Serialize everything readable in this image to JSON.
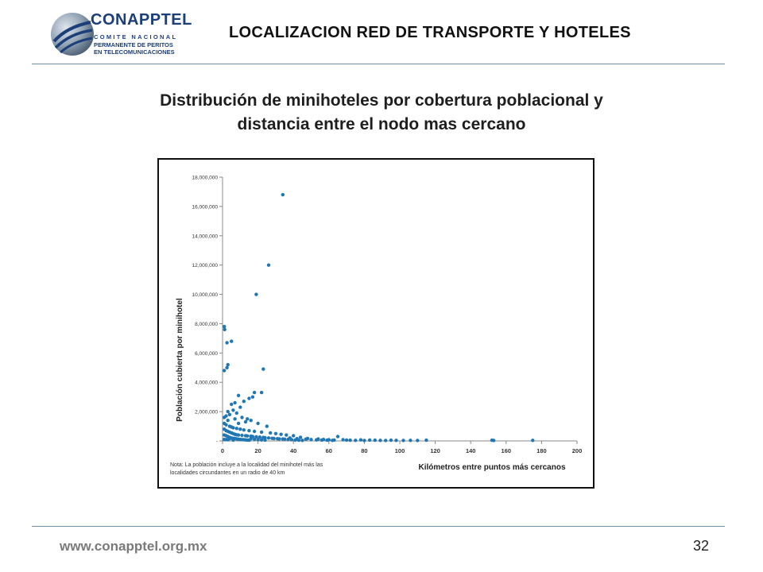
{
  "header": {
    "logo_brand": "CONAPPTEL",
    "logo_line1": "COMITE NACIONAL",
    "logo_line2": "PERMANENTE DE PERITOS",
    "logo_line3": "EN TELECOMUNICACIONES",
    "title": "LOCALIZACION RED DE TRANSPORTE Y HOTELES"
  },
  "slide": {
    "title_line1": "Distribución de minihoteles por cobertura poblacional y",
    "title_line2": "distancia entre el nodo mas cercano"
  },
  "footer": {
    "url": "www.conapptel.org.mx",
    "page_number": "32"
  },
  "colors": {
    "points": "#1f77b4",
    "rule": "#6f8fa6",
    "brand": "#1c3f7a"
  },
  "chart_data": {
    "type": "scatter",
    "xlabel": "Kilómetros entre puntos más cercanos",
    "ylabel": "Población cubierta por minihotel",
    "xlim": [
      0,
      200
    ],
    "ylim": [
      0,
      18000000
    ],
    "x_ticks": [
      0,
      20,
      40,
      60,
      80,
      100,
      120,
      140,
      160,
      180,
      200
    ],
    "y_ticks": [
      0,
      2000000,
      4000000,
      6000000,
      8000000,
      10000000,
      12000000,
      14000000,
      16000000,
      18000000
    ],
    "y_tick_labels": [
      "-",
      "2,000,000",
      "4,000,000",
      "6,000,000",
      "8,000,000",
      "10,000,000",
      "12,000,000",
      "14,000,000",
      "16,000,000",
      "18,000,000"
    ],
    "grid": false,
    "note_line1": "Nota: La población incluye a la localidad del minihotel más las",
    "note_line2": "localidades circundantes en un radio de 40 km",
    "points": [
      [
        34,
        16800000
      ],
      [
        26,
        12000000
      ],
      [
        19,
        10000000
      ],
      [
        1,
        7800000
      ],
      [
        1.2,
        7600000
      ],
      [
        5,
        6800000
      ],
      [
        2.5,
        6700000
      ],
      [
        3,
        5200000
      ],
      [
        2.5,
        5000000
      ],
      [
        1,
        4800000
      ],
      [
        23,
        4900000
      ],
      [
        22,
        3300000
      ],
      [
        18,
        3300000
      ],
      [
        17,
        3000000
      ],
      [
        15,
        2900000
      ],
      [
        9,
        3100000
      ],
      [
        7,
        2600000
      ],
      [
        5,
        2500000
      ],
      [
        12,
        2700000
      ],
      [
        10,
        2300000
      ],
      [
        3,
        2000000
      ],
      [
        6,
        2100000
      ],
      [
        8,
        1900000
      ],
      [
        4,
        1800000
      ],
      [
        2,
        1700000
      ],
      [
        11,
        1600000
      ],
      [
        14,
        1500000
      ],
      [
        16,
        1400000
      ],
      [
        20,
        1200000
      ],
      [
        25,
        1000000
      ],
      [
        13,
        1300000
      ],
      [
        7,
        1500000
      ],
      [
        1,
        1600000
      ],
      [
        3,
        1400000
      ],
      [
        9,
        1200000
      ],
      [
        1,
        1200000
      ],
      [
        2,
        1100000
      ],
      [
        4,
        1000000
      ],
      [
        5,
        950000
      ],
      [
        6,
        900000
      ],
      [
        8,
        850000
      ],
      [
        10,
        800000
      ],
      [
        12,
        750000
      ],
      [
        15,
        700000
      ],
      [
        18,
        650000
      ],
      [
        22,
        600000
      ],
      [
        27,
        550000
      ],
      [
        30,
        500000
      ],
      [
        33,
        450000
      ],
      [
        36,
        400000
      ],
      [
        1,
        800000
      ],
      [
        2,
        700000
      ],
      [
        3,
        650000
      ],
      [
        4,
        600000
      ],
      [
        5,
        550000
      ],
      [
        6,
        500000
      ],
      [
        7,
        450000
      ],
      [
        8,
        420000
      ],
      [
        9,
        400000
      ],
      [
        11,
        380000
      ],
      [
        13,
        360000
      ],
      [
        14,
        340000
      ],
      [
        16,
        320000
      ],
      [
        17,
        300000
      ],
      [
        19,
        280000
      ],
      [
        21,
        260000
      ],
      [
        23,
        240000
      ],
      [
        24,
        220000
      ],
      [
        26,
        200000
      ],
      [
        28,
        180000
      ],
      [
        29,
        160000
      ],
      [
        31,
        150000
      ],
      [
        32,
        140000
      ],
      [
        34,
        130000
      ],
      [
        35,
        120000
      ],
      [
        1,
        400000
      ],
      [
        2,
        350000
      ],
      [
        3,
        300000
      ],
      [
        4,
        250000
      ],
      [
        5,
        200000
      ],
      [
        6,
        180000
      ],
      [
        7,
        160000
      ],
      [
        8,
        140000
      ],
      [
        9,
        120000
      ],
      [
        10,
        100000
      ],
      [
        11,
        90000
      ],
      [
        12,
        80000
      ],
      [
        13,
        70000
      ],
      [
        14,
        60000
      ],
      [
        15,
        50000
      ],
      [
        16,
        150000
      ],
      [
        18,
        110000
      ],
      [
        20,
        90000
      ],
      [
        22,
        70000
      ],
      [
        24,
        60000
      ],
      [
        1,
        100000
      ],
      [
        2,
        90000
      ],
      [
        3,
        80000
      ],
      [
        4,
        150000
      ],
      [
        6,
        60000
      ],
      [
        37,
        100000
      ],
      [
        39,
        80000
      ],
      [
        41,
        60000
      ],
      [
        43,
        50000
      ],
      [
        45,
        40000
      ],
      [
        38,
        200000
      ],
      [
        42,
        150000
      ],
      [
        47,
        120000
      ],
      [
        50,
        90000
      ],
      [
        53,
        70000
      ],
      [
        56,
        60000
      ],
      [
        59,
        50000
      ],
      [
        62,
        40000
      ],
      [
        65,
        300000
      ],
      [
        68,
        80000
      ],
      [
        70,
        60000
      ],
      [
        72,
        50000
      ],
      [
        75,
        40000
      ],
      [
        78,
        70000
      ],
      [
        80,
        30000
      ],
      [
        83,
        60000
      ],
      [
        86,
        50000
      ],
      [
        89,
        40000
      ],
      [
        92,
        30000
      ],
      [
        95,
        50000
      ],
      [
        98,
        40000
      ],
      [
        102,
        30000
      ],
      [
        106,
        40000
      ],
      [
        110,
        30000
      ],
      [
        115,
        50000
      ],
      [
        57,
        100000
      ],
      [
        60,
        80000
      ],
      [
        63,
        60000
      ],
      [
        54,
        130000
      ],
      [
        48,
        170000
      ],
      [
        152,
        50000
      ],
      [
        153,
        30000
      ],
      [
        175,
        40000
      ],
      [
        40,
        350000
      ],
      [
        44,
        250000
      ]
    ]
  }
}
